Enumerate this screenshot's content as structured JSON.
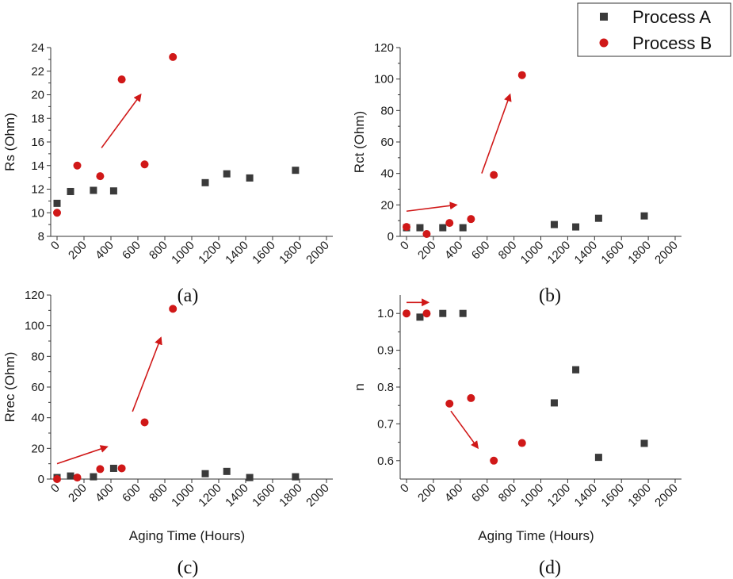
{
  "legend": {
    "entries": [
      {
        "label": "Process A",
        "marker": "square",
        "color": "#3a3a3a"
      },
      {
        "label": "Process B",
        "marker": "circle",
        "color": "#d01818"
      }
    ]
  },
  "colors": {
    "process_a": "#3a3a3a",
    "process_b": "#d01818",
    "arrow": "#d01818"
  },
  "chart_data": [
    {
      "type": "scatter",
      "panel": "(a)",
      "xlabel": "",
      "ylabel": "Rs (Ohm)",
      "xlim": [
        0,
        2000
      ],
      "ylim": [
        8,
        24
      ],
      "xticks": [
        0,
        200,
        400,
        600,
        800,
        1000,
        1200,
        1400,
        1600,
        1800,
        2000
      ],
      "yticks": [
        8,
        10,
        12,
        14,
        16,
        18,
        20,
        22,
        24
      ],
      "yminor": true,
      "series": [
        {
          "name": "Process A",
          "points": [
            [
              0,
              10.8
            ],
            [
              100,
              11.8
            ],
            [
              270,
              11.9
            ],
            [
              420,
              11.85
            ],
            [
              1100,
              12.55
            ],
            [
              1260,
              13.3
            ],
            [
              1430,
              12.95
            ],
            [
              1770,
              13.6
            ]
          ]
        },
        {
          "name": "Process B",
          "points": [
            [
              0,
              10.0
            ],
            [
              150,
              14.0
            ],
            [
              320,
              13.1
            ],
            [
              480,
              21.3
            ],
            [
              650,
              14.1
            ],
            [
              860,
              23.2
            ]
          ]
        }
      ],
      "arrows": [
        {
          "from": [
            330,
            15.5
          ],
          "to": [
            620,
            20.0
          ]
        }
      ]
    },
    {
      "type": "scatter",
      "panel": "(b)",
      "xlabel": "",
      "ylabel": "Rct (Ohm)",
      "xlim": [
        0,
        2000
      ],
      "ylim": [
        0,
        120
      ],
      "xticks": [
        0,
        200,
        400,
        600,
        800,
        1000,
        1200,
        1400,
        1600,
        1800,
        2000
      ],
      "yticks": [
        0,
        20,
        40,
        60,
        80,
        100,
        120
      ],
      "yminor": true,
      "series": [
        {
          "name": "Process A",
          "points": [
            [
              0,
              5.5
            ],
            [
              100,
              5.5
            ],
            [
              270,
              5.5
            ],
            [
              420,
              5.5
            ],
            [
              1100,
              7.5
            ],
            [
              1260,
              6.0
            ],
            [
              1430,
              11.5
            ],
            [
              1770,
              13.0
            ]
          ]
        },
        {
          "name": "Process B",
          "points": [
            [
              0,
              6.0
            ],
            [
              150,
              1.5
            ],
            [
              320,
              8.5
            ],
            [
              480,
              11.0
            ],
            [
              650,
              39.0
            ],
            [
              860,
              102.5
            ]
          ]
        }
      ],
      "arrows": [
        {
          "from": [
            0,
            16
          ],
          "to": [
            370,
            20
          ]
        },
        {
          "from": [
            560,
            40
          ],
          "to": [
            770,
            90
          ]
        }
      ]
    },
    {
      "type": "scatter",
      "panel": "(c)",
      "xlabel": "Aging Time (Hours)",
      "ylabel": "Rrec (Ohm)",
      "xlim": [
        0,
        2000
      ],
      "ylim": [
        0,
        120
      ],
      "xticks": [
        0,
        200,
        400,
        600,
        800,
        1000,
        1200,
        1400,
        1600,
        1800,
        2000
      ],
      "yticks": [
        0,
        20,
        40,
        60,
        80,
        100,
        120
      ],
      "yminor": true,
      "series": [
        {
          "name": "Process A",
          "points": [
            [
              0,
              1.0
            ],
            [
              100,
              2.0
            ],
            [
              270,
              1.5
            ],
            [
              420,
              7.0
            ],
            [
              1100,
              3.5
            ],
            [
              1260,
              5.0
            ],
            [
              1430,
              1.0
            ],
            [
              1770,
              1.5
            ]
          ]
        },
        {
          "name": "Process B",
          "points": [
            [
              0,
              0.0
            ],
            [
              150,
              1.0
            ],
            [
              320,
              6.5
            ],
            [
              480,
              7.0
            ],
            [
              650,
              37.0
            ],
            [
              860,
              111.0
            ]
          ]
        }
      ],
      "arrows": [
        {
          "from": [
            0,
            10
          ],
          "to": [
            370,
            21
          ]
        },
        {
          "from": [
            560,
            44
          ],
          "to": [
            770,
            92
          ]
        }
      ]
    },
    {
      "type": "scatter",
      "panel": "(d)",
      "xlabel": "Aging Time (Hours)",
      "ylabel": "n",
      "xlim": [
        0,
        2000
      ],
      "ylim": [
        0.55,
        1.05
      ],
      "xticks": [
        0,
        200,
        400,
        600,
        800,
        1000,
        1200,
        1400,
        1600,
        1800,
        2000
      ],
      "yticks": [
        0.6,
        0.7,
        0.8,
        0.9,
        1.0
      ],
      "ytick_labels": [
        "0.6",
        "0.7",
        "0.8",
        "0.9",
        "1.0"
      ],
      "yminor": true,
      "series": [
        {
          "name": "Process A",
          "points": [
            [
              100,
              0.99
            ],
            [
              270,
              1.0
            ],
            [
              420,
              1.0
            ],
            [
              1100,
              0.757
            ],
            [
              1260,
              0.847
            ],
            [
              1430,
              0.609
            ],
            [
              1770,
              0.647
            ]
          ]
        },
        {
          "name": "Process B",
          "points": [
            [
              0,
              1.0
            ],
            [
              150,
              1.0
            ],
            [
              320,
              0.755
            ],
            [
              480,
              0.77
            ],
            [
              650,
              0.6
            ],
            [
              860,
              0.648
            ]
          ]
        }
      ],
      "arrows": [
        {
          "from": [
            0,
            1.03
          ],
          "to": [
            160,
            1.03
          ]
        },
        {
          "from": [
            330,
            0.735
          ],
          "to": [
            530,
            0.635
          ]
        }
      ]
    }
  ]
}
